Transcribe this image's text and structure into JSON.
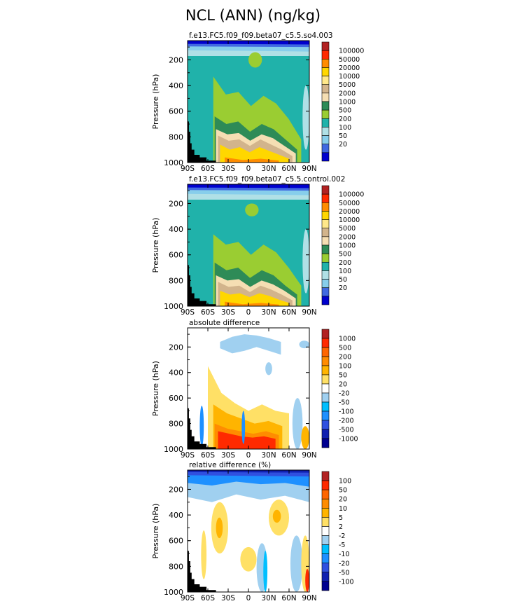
{
  "title": "NCL (ANN) (ng/kg)",
  "colors": {
    "land": "#000000",
    "frame": "#000000"
  },
  "chart_data": [
    {
      "type": "contour",
      "title": "f.e13.FC5.f09_f09.beta07_c5.5.so4.003",
      "ylabel": "Pressure (hPa)",
      "xlabel": "",
      "x_ticks": [
        "90S",
        "60S",
        "30S",
        "0",
        "30N",
        "60N",
        "90N"
      ],
      "x_range": [
        -90,
        90
      ],
      "y_ticks": [
        "200",
        "400",
        "600",
        "800",
        "1000"
      ],
      "y_range": [
        50,
        1000
      ],
      "levels": [
        "100000",
        "50000",
        "20000",
        "10000",
        "5000",
        "2000",
        "1000",
        "500",
        "200",
        "100",
        "50",
        "20"
      ],
      "colors": [
        "#b22222",
        "#ff2a00",
        "#ff8c00",
        "#ffd700",
        "#ffe88a",
        "#d2b48c",
        "#f5deb3",
        "#2e8b57",
        "#9acd32",
        "#20b2aa",
        "#b0e0e6",
        "#87ceeb",
        "#4169e1",
        "#0000cd"
      ],
      "background": "#20b2aa",
      "bands": [
        {
          "color": "#b0e0e6",
          "x": [
            -90,
            90
          ],
          "top": [
            50,
            50
          ],
          "bottom": [
            170,
            170
          ]
        },
        {
          "color": "#87ceeb",
          "x": [
            -90,
            90
          ],
          "top": [
            50,
            50
          ],
          "bottom": [
            125,
            135
          ]
        },
        {
          "color": "#4169e1",
          "x": [
            -90,
            90
          ],
          "top": [
            50,
            50
          ],
          "bottom": [
            95,
            100
          ]
        },
        {
          "color": "#0000cd",
          "x": [
            -90,
            90
          ],
          "top": [
            50,
            50
          ],
          "bottom": [
            75,
            80
          ]
        },
        {
          "color": "#9acd32",
          "x": [
            -52,
            78
          ],
          "top": [
            330,
            470,
            450,
            560,
            480,
            540,
            660,
            820
          ],
          "bottom": [
            1000,
            1000
          ]
        },
        {
          "color": "#2e8b57",
          "x": [
            -50,
            72
          ],
          "top": [
            640,
            700,
            680,
            760,
            700,
            740,
            820,
            900
          ],
          "bottom": [
            1000,
            1000
          ]
        },
        {
          "color": "#f5deb3",
          "x": [
            -48,
            70
          ],
          "top": [
            740,
            780,
            770,
            830,
            780,
            810,
            870,
            930
          ],
          "bottom": [
            1000,
            1000
          ]
        },
        {
          "color": "#d2b48c",
          "x": [
            -45,
            65
          ],
          "top": [
            790,
            830,
            820,
            870,
            820,
            860,
            900,
            950
          ],
          "bottom": [
            1000,
            1000
          ]
        },
        {
          "color": "#ffd700",
          "x": [
            -42,
            60
          ],
          "top": [
            860,
            900,
            880,
            920,
            880,
            910,
            940,
            970
          ],
          "bottom": [
            1000,
            1000
          ]
        },
        {
          "color": "#ff8c00",
          "x": [
            -35,
            45
          ],
          "top": [
            960,
            980,
            970,
            985
          ],
          "bottom": [
            1000,
            1000
          ]
        }
      ],
      "blobs": [
        {
          "color": "#9acd32",
          "x": [
            0,
            20
          ],
          "top": [
            140,
            140
          ],
          "bottom": [
            260,
            260
          ]
        },
        {
          "color": "#b0e0e6",
          "x": [
            80,
            90
          ],
          "top": [
            400,
            400
          ],
          "bottom": [
            900,
            900
          ]
        }
      ]
    },
    {
      "type": "contour",
      "title": "f.e13.FC5.f09_f09.beta07_c5.5.control.002",
      "ylabel": "Pressure (hPa)",
      "xlabel": "",
      "x_ticks": [
        "90S",
        "60S",
        "30S",
        "0",
        "30N",
        "60N",
        "90N"
      ],
      "x_range": [
        -90,
        90
      ],
      "y_ticks": [
        "200",
        "400",
        "600",
        "800",
        "1000"
      ],
      "y_range": [
        50,
        1000
      ],
      "levels": [
        "100000",
        "50000",
        "20000",
        "10000",
        "5000",
        "2000",
        "1000",
        "500",
        "200",
        "100",
        "50",
        "20"
      ],
      "colors": [
        "#b22222",
        "#ff2a00",
        "#ff8c00",
        "#ffd700",
        "#ffe88a",
        "#d2b48c",
        "#f5deb3",
        "#2e8b57",
        "#9acd32",
        "#20b2aa",
        "#b0e0e6",
        "#87ceeb",
        "#4169e1",
        "#0000cd"
      ],
      "background": "#20b2aa",
      "bands": [
        {
          "color": "#b0e0e6",
          "x": [
            -90,
            90
          ],
          "top": [
            50,
            50
          ],
          "bottom": [
            170,
            170
          ]
        },
        {
          "color": "#87ceeb",
          "x": [
            -90,
            90
          ],
          "top": [
            50,
            50
          ],
          "bottom": [
            125,
            135
          ]
        },
        {
          "color": "#4169e1",
          "x": [
            -90,
            90
          ],
          "top": [
            50,
            50
          ],
          "bottom": [
            95,
            100
          ]
        },
        {
          "color": "#0000cd",
          "x": [
            -90,
            90
          ],
          "top": [
            50,
            50
          ],
          "bottom": [
            75,
            80
          ]
        },
        {
          "color": "#9acd32",
          "x": [
            -52,
            78
          ],
          "top": [
            440,
            520,
            500,
            600,
            520,
            580,
            700,
            840
          ],
          "bottom": [
            1000,
            1000
          ]
        },
        {
          "color": "#2e8b57",
          "x": [
            -50,
            72
          ],
          "top": [
            660,
            720,
            700,
            780,
            720,
            760,
            840,
            910
          ],
          "bottom": [
            1000,
            1000
          ]
        },
        {
          "color": "#f5deb3",
          "x": [
            -48,
            70
          ],
          "top": [
            760,
            800,
            790,
            850,
            800,
            830,
            880,
            940
          ],
          "bottom": [
            1000,
            1000
          ]
        },
        {
          "color": "#d2b48c",
          "x": [
            -45,
            65
          ],
          "top": [
            810,
            850,
            840,
            890,
            840,
            870,
            910,
            955
          ],
          "bottom": [
            1000,
            1000
          ]
        },
        {
          "color": "#ffd700",
          "x": [
            -42,
            60
          ],
          "top": [
            880,
            910,
            900,
            930,
            900,
            920,
            950,
            975
          ],
          "bottom": [
            1000,
            1000
          ]
        },
        {
          "color": "#ff8c00",
          "x": [
            -35,
            45
          ],
          "top": [
            965,
            985,
            975,
            988
          ],
          "bottom": [
            1000,
            1000
          ]
        }
      ],
      "blobs": [
        {
          "color": "#9acd32",
          "x": [
            -5,
            15
          ],
          "top": [
            200,
            200
          ],
          "bottom": [
            300,
            300
          ]
        },
        {
          "color": "#b0e0e6",
          "x": [
            80,
            90
          ],
          "top": [
            400,
            400
          ],
          "bottom": [
            900,
            900
          ]
        }
      ]
    },
    {
      "type": "contour",
      "title": "absolute difference",
      "ylabel": "Pressure (hPa)",
      "xlabel": "",
      "x_ticks": [
        "90S",
        "60S",
        "30S",
        "0",
        "30N",
        "60N",
        "90N"
      ],
      "x_range": [
        -90,
        90
      ],
      "y_ticks": [
        "200",
        "400",
        "600",
        "800",
        "1000"
      ],
      "y_range": [
        50,
        1000
      ],
      "levels": [
        "1000",
        "500",
        "200",
        "100",
        "50",
        "20",
        "-20",
        "-50",
        "-100",
        "-200",
        "-500",
        "-1000"
      ],
      "colors": [
        "#b22222",
        "#ff2a00",
        "#ff6600",
        "#ff8c00",
        "#ffb400",
        "#ffe066",
        "#ffffff",
        "#a0d0f0",
        "#00bfff",
        "#1e90ff",
        "#3050e0",
        "#1020b0",
        "#000090"
      ],
      "background": "#ffffff",
      "bands": [
        {
          "color": "#a0d0f0",
          "x": [
            -42,
            48
          ],
          "top": [
            160,
            120,
            100,
            110,
            130,
            160
          ],
          "bottom": [
            210,
            250,
            230,
            200,
            230,
            260
          ]
        },
        {
          "color": "#ffe066",
          "x": [
            -60,
            60
          ],
          "top": [
            350,
            560,
            640,
            700,
            650,
            700,
            720
          ],
          "bottom": [
            1000,
            1000
          ]
        },
        {
          "color": "#ffb400",
          "x": [
            -52,
            50
          ],
          "top": [
            650,
            720,
            760,
            800,
            780,
            820
          ],
          "bottom": [
            1000,
            1000
          ]
        },
        {
          "color": "#ff8c00",
          "x": [
            -50,
            45
          ],
          "top": [
            800,
            840,
            860,
            880,
            860,
            890
          ],
          "bottom": [
            1000,
            1000
          ]
        },
        {
          "color": "#ff2a00",
          "x": [
            -45,
            40
          ],
          "top": [
            860,
            880,
            900,
            910,
            900,
            920
          ],
          "bottom": [
            1000,
            1000
          ]
        }
      ],
      "blobs": [
        {
          "color": "#a0d0f0",
          "x": [
            75,
            90
          ],
          "top": [
            150,
            150
          ],
          "bottom": [
            210,
            210
          ]
        },
        {
          "color": "#a0d0f0",
          "x": [
            25,
            35
          ],
          "top": [
            320,
            320
          ],
          "bottom": [
            420,
            420
          ]
        },
        {
          "color": "#1e90ff",
          "x": [
            -72,
            -66
          ],
          "top": [
            660,
            660
          ],
          "bottom": [
            980,
            980
          ]
        },
        {
          "color": "#1e90ff",
          "x": [
            -10,
            -5
          ],
          "top": [
            700,
            700
          ],
          "bottom": [
            960,
            960
          ]
        },
        {
          "color": "#a0d0f0",
          "x": [
            65,
            80
          ],
          "top": [
            600,
            600
          ],
          "bottom": [
            1000,
            1000
          ]
        },
        {
          "color": "#ffb400",
          "x": [
            78,
            90
          ],
          "top": [
            820,
            820
          ],
          "bottom": [
            1000,
            1000
          ]
        }
      ]
    },
    {
      "type": "contour",
      "title": "relative difference (%)",
      "ylabel": "Pressure (hPa)",
      "xlabel": "",
      "x_ticks": [
        "90S",
        "60S",
        "30S",
        "0",
        "30N",
        "60N",
        "90N"
      ],
      "x_range": [
        -90,
        90
      ],
      "y_ticks": [
        "200",
        "400",
        "600",
        "800",
        "1000"
      ],
      "y_range": [
        50,
        1000
      ],
      "levels": [
        "100",
        "50",
        "20",
        "10",
        "5",
        "2",
        "-2",
        "-5",
        "-10",
        "-20",
        "-50",
        "-100"
      ],
      "colors": [
        "#b22222",
        "#ff2a00",
        "#ff6600",
        "#ff8c00",
        "#ffb400",
        "#ffe066",
        "#ffffff",
        "#a0d0f0",
        "#00bfff",
        "#1e90ff",
        "#3050e0",
        "#1020b0",
        "#000090"
      ],
      "background": "#ffffff",
      "bands": [
        {
          "color": "#a0d0f0",
          "x": [
            -90,
            90
          ],
          "top": [
            50,
            50
          ],
          "bottom": [
            260,
            300,
            240,
            280,
            250,
            300
          ]
        },
        {
          "color": "#1e90ff",
          "x": [
            -90,
            90
          ],
          "top": [
            50,
            50
          ],
          "bottom": [
            150,
            170,
            140,
            160,
            150,
            180
          ]
        },
        {
          "color": "#3050e0",
          "x": [
            -90,
            90
          ],
          "top": [
            50,
            50
          ],
          "bottom": [
            90,
            100
          ]
        },
        {
          "color": "#1020b0",
          "x": [
            -90,
            90
          ],
          "top": [
            50,
            50
          ],
          "bottom": [
            65,
            70
          ]
        }
      ],
      "blobs": [
        {
          "color": "#ffe066",
          "x": [
            -55,
            -30
          ],
          "top": [
            300,
            300
          ],
          "bottom": [
            700,
            700
          ]
        },
        {
          "color": "#ffb400",
          "x": [
            -48,
            -38
          ],
          "top": [
            420,
            420
          ],
          "bottom": [
            580,
            580
          ]
        },
        {
          "color": "#ffe066",
          "x": [
            -70,
            -62
          ],
          "top": [
            520,
            520
          ],
          "bottom": [
            900,
            900
          ]
        },
        {
          "color": "#ffe066",
          "x": [
            -12,
            12
          ],
          "top": [
            650,
            650
          ],
          "bottom": [
            840,
            840
          ]
        },
        {
          "color": "#ffe066",
          "x": [
            30,
            60
          ],
          "top": [
            280,
            280
          ],
          "bottom": [
            560,
            560
          ]
        },
        {
          "color": "#ffb400",
          "x": [
            36,
            48
          ],
          "top": [
            360,
            360
          ],
          "bottom": [
            460,
            460
          ]
        },
        {
          "color": "#a0d0f0",
          "x": [
            12,
            28
          ],
          "top": [
            620,
            620
          ],
          "bottom": [
            1000,
            1000
          ]
        },
        {
          "color": "#00bfff",
          "x": [
            22,
            28
          ],
          "top": [
            680,
            680
          ],
          "bottom": [
            1000,
            1000
          ]
        },
        {
          "color": "#a0d0f0",
          "x": [
            62,
            80
          ],
          "top": [
            560,
            560
          ],
          "bottom": [
            1000,
            1000
          ]
        },
        {
          "color": "#ffe066",
          "x": [
            78,
            90
          ],
          "top": [
            560,
            560
          ],
          "bottom": [
            1000,
            1000
          ]
        },
        {
          "color": "#ff2a00",
          "x": [
            84,
            90
          ],
          "top": [
            820,
            820
          ],
          "bottom": [
            1000,
            1000
          ]
        }
      ]
    }
  ]
}
